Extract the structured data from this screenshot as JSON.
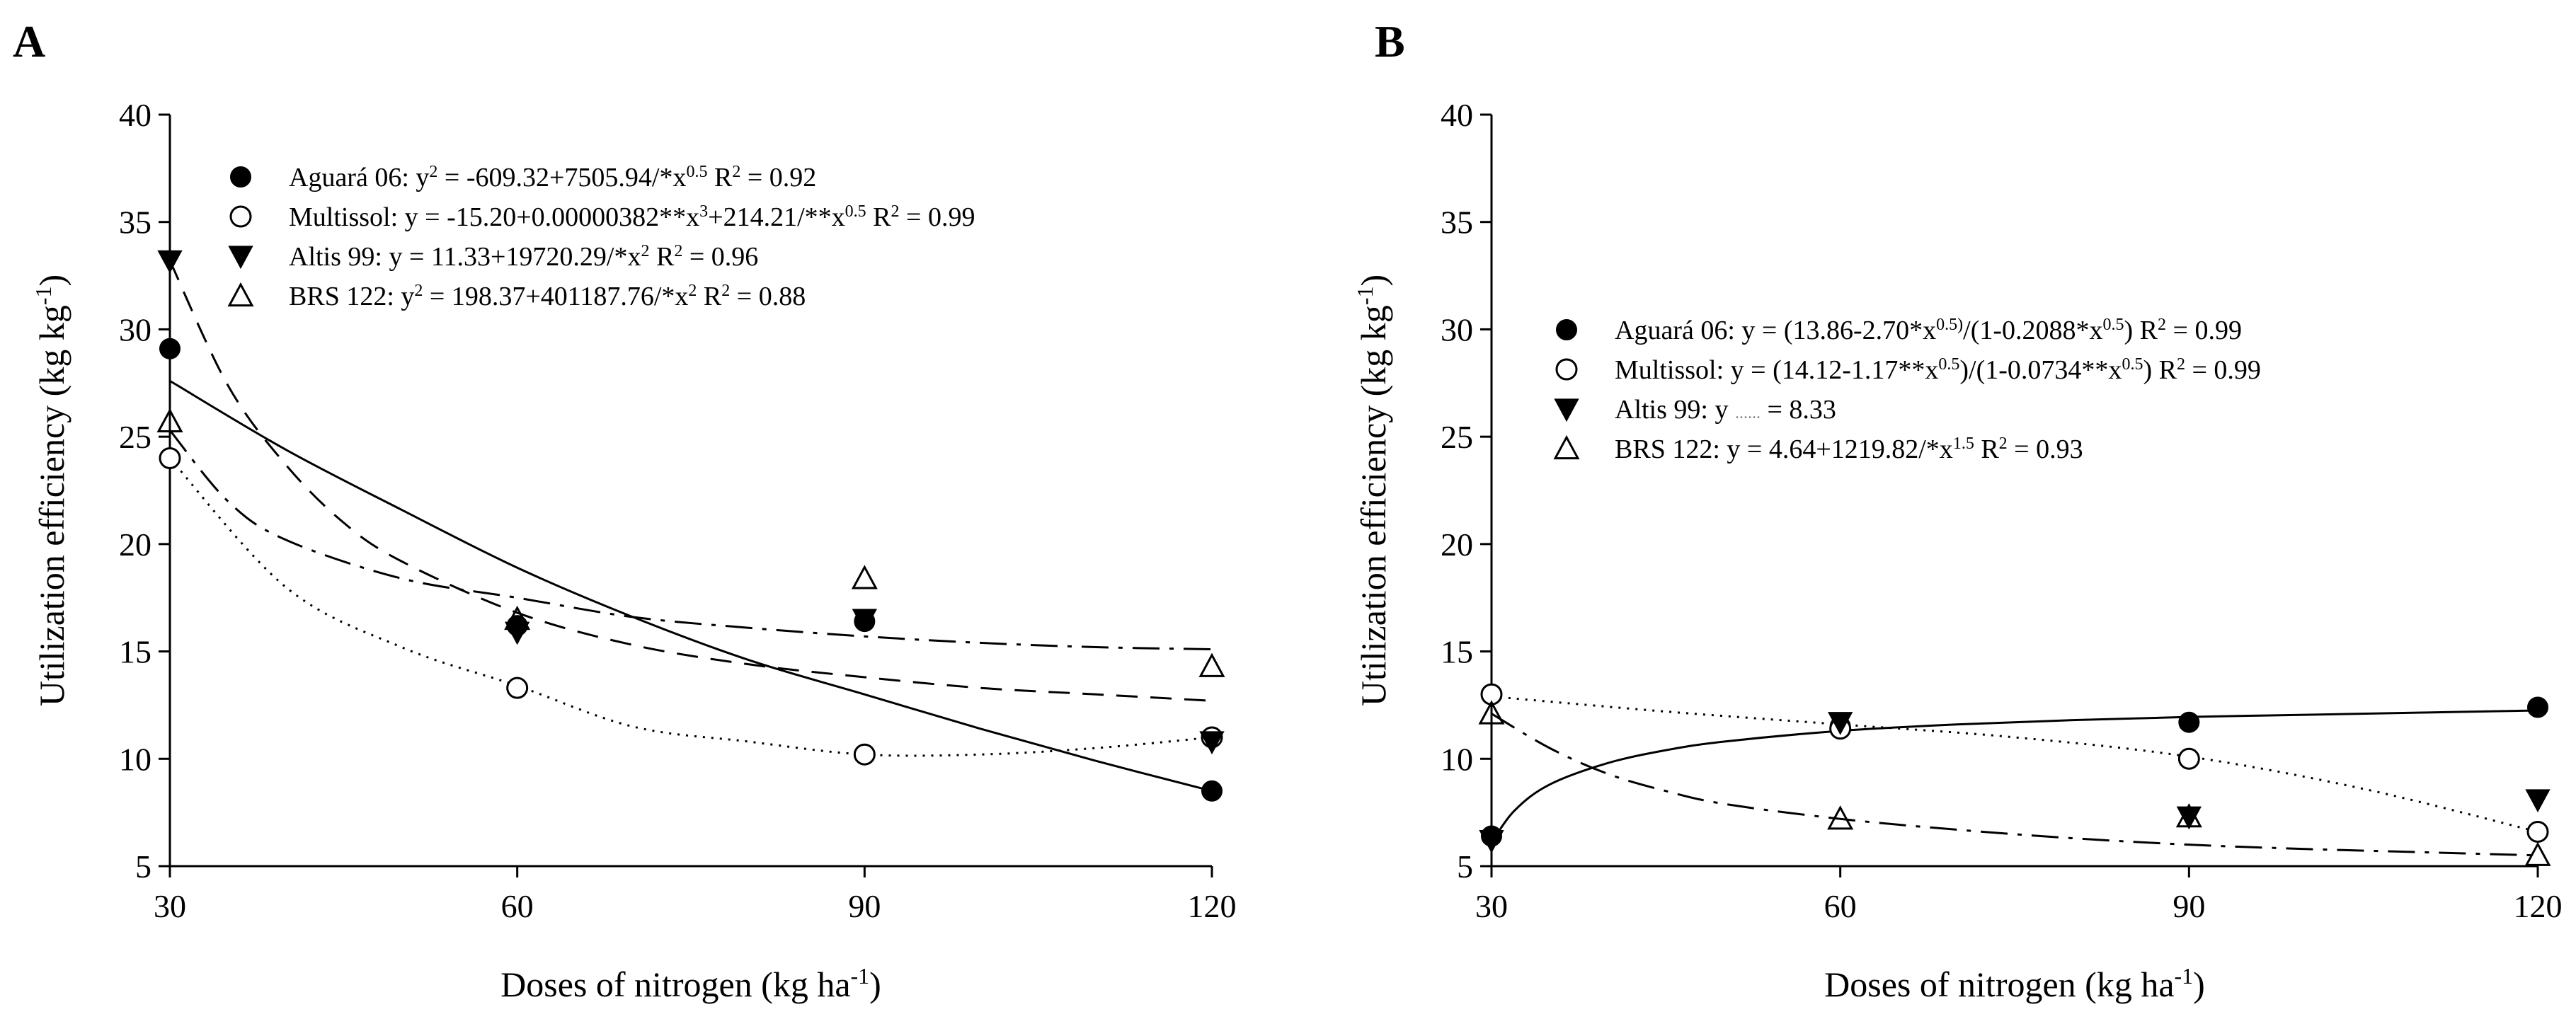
{
  "chart_data": [
    {
      "type": "scatter",
      "panel_label": "A",
      "xlabel": "Doses of nitrogen (kg ha",
      "xlabel_sup": "-1",
      "xlabel_end": ")",
      "ylabel": "Utilization efficiency (kg kg",
      "ylabel_sup": "-1",
      "ylabel_end": ")",
      "x_ticks": [
        30,
        60,
        90,
        120
      ],
      "y_ticks": [
        5,
        10,
        15,
        20,
        25,
        30,
        35,
        40
      ],
      "xlim": [
        30,
        120
      ],
      "ylim": [
        5,
        40
      ],
      "legend_position": "top-left",
      "series": [
        {
          "name": "Aguará 06",
          "marker": "filled-circle",
          "line_style": "solid",
          "x": [
            30,
            60,
            90,
            120
          ],
          "values": [
            29.1,
            16.2,
            16.4,
            8.5
          ],
          "fit_x": [
            30,
            40,
            50,
            60,
            70,
            80,
            90,
            100,
            110,
            120
          ],
          "fit_y": [
            27.6,
            24.4,
            21.6,
            18.9,
            16.6,
            14.6,
            13.0,
            11.4,
            9.9,
            8.5
          ],
          "legend_label": [
            {
              "text": "Aguará 06: y"
            },
            {
              "text": "2",
              "sup": true
            },
            {
              "text": " = -609.32+7505.94/*x"
            },
            {
              "text": "0.5",
              "sup": true
            },
            {
              "text": "    R"
            },
            {
              "text": "2",
              "sup": true
            },
            {
              "text": " = 0.92"
            }
          ]
        },
        {
          "name": "Multissol",
          "marker": "open-circle",
          "line_style": "dotted",
          "x": [
            30,
            60,
            90,
            120
          ],
          "values": [
            24.0,
            13.3,
            10.2,
            11.0
          ],
          "fit_x": [
            30,
            40,
            50,
            60,
            70,
            80,
            90,
            100,
            110,
            120
          ],
          "fit_y": [
            24.0,
            18.0,
            15.2,
            13.4,
            11.5,
            10.8,
            10.2,
            10.2,
            10.5,
            11.0
          ],
          "legend_label": [
            {
              "text": "Multissol: y = -15.20+0.00000382**x"
            },
            {
              "text": "3",
              "sup": true
            },
            {
              "text": "+214.21/**x"
            },
            {
              "text": "0.5",
              "sup": true
            },
            {
              "text": "    R"
            },
            {
              "text": "2",
              "sup": true
            },
            {
              "text": " = 0.99"
            }
          ]
        },
        {
          "name": "Altis 99",
          "marker": "filled-triangle-down",
          "line_style": "dashed",
          "x": [
            30,
            60,
            90,
            120
          ],
          "values": [
            33.2,
            15.9,
            16.5,
            10.8
          ],
          "fit_x": [
            30,
            35,
            40,
            45,
            50,
            60,
            70,
            80,
            90,
            100,
            110,
            120
          ],
          "fit_y": [
            33.2,
            27.4,
            23.7,
            21.0,
            19.2,
            16.8,
            15.3,
            14.4,
            13.8,
            13.3,
            13.0,
            12.7
          ],
          "legend_label": [
            {
              "text": "Altis 99: y = 11.33+19720.29/*x"
            },
            {
              "text": "2",
              "sup": true
            },
            {
              "text": "    R"
            },
            {
              "text": "2",
              "sup": true
            },
            {
              "text": " = 0.96"
            }
          ]
        },
        {
          "name": "BRS 122",
          "marker": "open-triangle-up",
          "line_style": "dash-dot",
          "x": [
            30,
            60,
            90,
            120
          ],
          "values": [
            25.7,
            16.5,
            18.4,
            14.3
          ],
          "fit_x": [
            30,
            35,
            40,
            50,
            60,
            70,
            80,
            90,
            100,
            110,
            120
          ],
          "fit_y": [
            25.3,
            22.0,
            20.2,
            18.4,
            17.5,
            16.6,
            16.1,
            15.7,
            15.4,
            15.2,
            15.1
          ],
          "legend_label": [
            {
              "text": "BRS 122: y"
            },
            {
              "text": "2",
              "sup": true
            },
            {
              "text": " = 198.37+401187.76/*x"
            },
            {
              "text": "2",
              "sup": true
            },
            {
              "text": "    R"
            },
            {
              "text": "2",
              "sup": true
            },
            {
              "text": " = 0.88"
            }
          ]
        }
      ]
    },
    {
      "type": "scatter",
      "panel_label": "B",
      "xlabel": "Doses of nitrogen (kg ha",
      "xlabel_sup": "-1",
      "xlabel_end": ")",
      "ylabel": "Utilization efficiency (kg kg",
      "ylabel_sup": "-1",
      "ylabel_end": ")",
      "x_ticks": [
        30,
        60,
        90,
        120
      ],
      "y_ticks": [
        5,
        10,
        15,
        20,
        25,
        30,
        35,
        40
      ],
      "xlim": [
        30,
        120
      ],
      "ylim": [
        5,
        40
      ],
      "legend_position": "center-left",
      "series": [
        {
          "name": "Aguará 06",
          "marker": "filled-circle",
          "line_style": "solid",
          "x": [
            30,
            60,
            90,
            120
          ],
          "values": [
            6.4,
            11.5,
            11.7,
            12.4
          ],
          "fit_x": [
            30,
            32,
            35,
            40,
            45,
            50,
            60,
            70,
            80,
            90,
            100,
            110,
            120
          ],
          "fit_y": [
            6.1,
            7.6,
            8.8,
            9.8,
            10.4,
            10.8,
            11.3,
            11.6,
            11.8,
            11.95,
            12.05,
            12.15,
            12.25
          ],
          "legend_label": [
            {
              "text": "Aguará 06: y = (13.86-2.70*x"
            },
            {
              "text": "0.5)",
              "sup": true
            },
            {
              "text": "/(1-0.2088*x"
            },
            {
              "text": "0.5",
              "sup": true
            },
            {
              "text": ")    R"
            },
            {
              "text": "2",
              "sup": true
            },
            {
              "text": " = 0.99"
            }
          ]
        },
        {
          "name": "Multissol",
          "marker": "open-circle",
          "line_style": "dotted",
          "x": [
            30,
            60,
            90,
            120
          ],
          "values": [
            13.0,
            11.4,
            10.0,
            6.6
          ],
          "fit_x": [
            30,
            45,
            60,
            75,
            90,
            105,
            120
          ],
          "fit_y": [
            12.9,
            12.2,
            11.6,
            11.0,
            10.1,
            8.6,
            6.6
          ],
          "legend_label": [
            {
              "text": "Multissol: y = (14.12-1.17**x"
            },
            {
              "text": "0.5",
              "sup": true
            },
            {
              "text": ")/(1-0.0734**x"
            },
            {
              "text": "0.5",
              "sup": true
            },
            {
              "text": ")    R"
            },
            {
              "text": "2",
              "sup": true
            },
            {
              "text": " = 0.99"
            }
          ]
        },
        {
          "name": "Altis 99",
          "marker": "filled-triangle-down",
          "line_style": "none",
          "x": [
            30,
            60,
            90,
            120
          ],
          "values": [
            6.2,
            11.7,
            7.3,
            8.1
          ],
          "legend_label": [
            {
              "text": "Altis 99: y "
            },
            {
              "text": "......",
              "dotted": true
            },
            {
              "text": " = 8.33"
            }
          ]
        },
        {
          "name": "BRS 122",
          "marker": "open-triangle-up",
          "line_style": "dash-dot",
          "x": [
            30,
            60,
            90,
            120
          ],
          "values": [
            12.1,
            7.2,
            7.3,
            5.5
          ],
          "fit_x": [
            30,
            35,
            40,
            45,
            50,
            60,
            70,
            80,
            90,
            100,
            110,
            120
          ],
          "fit_y": [
            12.1,
            10.5,
            9.3,
            8.5,
            7.9,
            7.2,
            6.7,
            6.3,
            6.0,
            5.8,
            5.65,
            5.5
          ],
          "legend_label": [
            {
              "text": "BRS 122: y = 4.64+1219.82/*x"
            },
            {
              "text": "1.5",
              "sup": true
            },
            {
              "text": "    R"
            },
            {
              "text": "2",
              "sup": true
            },
            {
              "text": " = 0.93"
            }
          ]
        }
      ]
    }
  ]
}
